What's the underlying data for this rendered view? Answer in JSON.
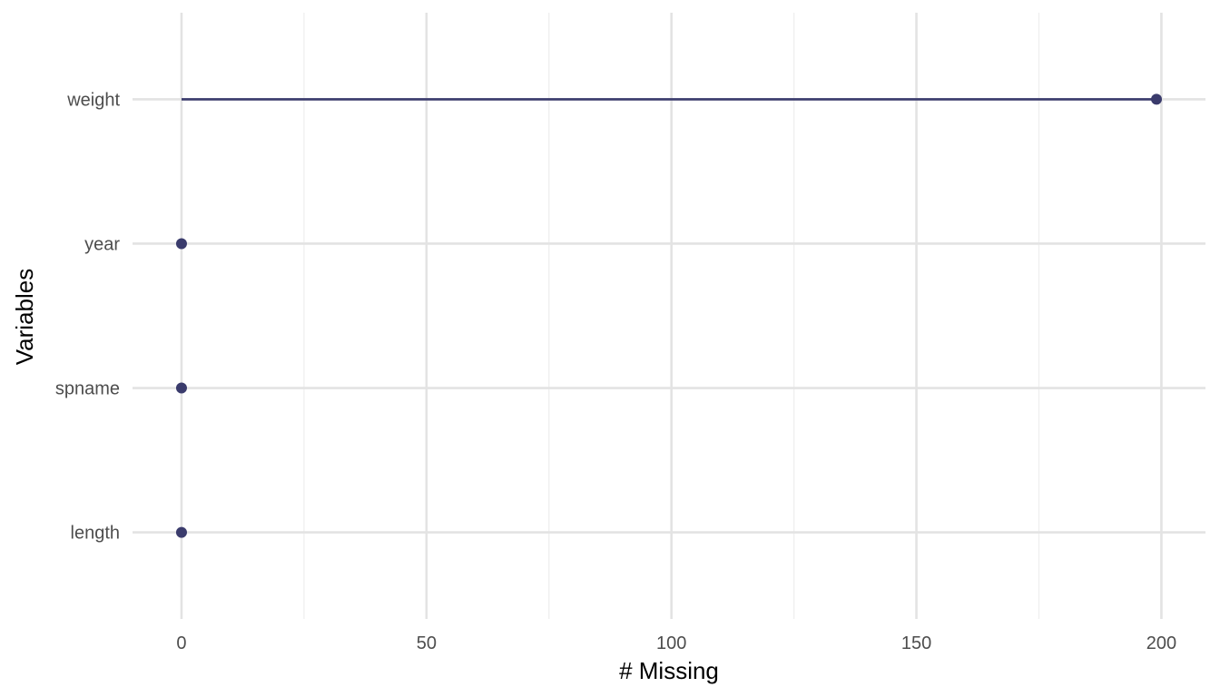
{
  "chart_data": {
    "type": "lollipop",
    "title": "",
    "xlabel": "# Missing",
    "ylabel": "Variables",
    "xlim": [
      -10,
      209
    ],
    "x_ticks": [
      0,
      50,
      100,
      150,
      200
    ],
    "x_tick_labels": [
      "0",
      "50",
      "100",
      "150",
      "200"
    ],
    "x_minor_ticks": [
      25,
      75,
      125,
      175
    ],
    "categories": [
      "weight",
      "year",
      "spname",
      "length"
    ],
    "values": [
      199,
      0,
      0,
      0
    ],
    "grid": true,
    "legend": "none",
    "colors": {
      "mark": "#3a3b6c",
      "grid_major": "#e3e3e3",
      "grid_minor": "#efefef",
      "tick_text": "#4d4d4d",
      "title_text": "#000000"
    }
  }
}
